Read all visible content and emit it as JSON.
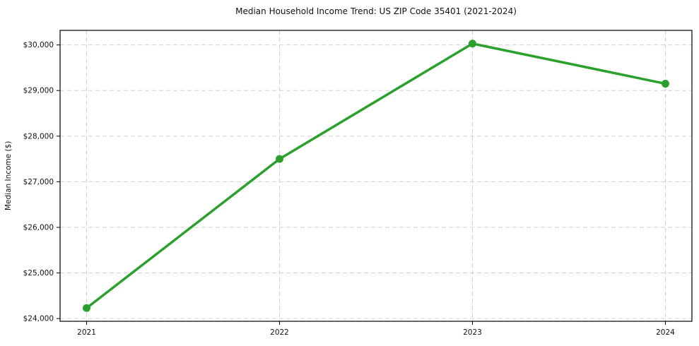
{
  "chart_data": {
    "type": "line",
    "title": "Median Household Income Trend: US ZIP Code 35401 (2021-2024)",
    "xlabel": "",
    "ylabel": "Median Income ($)",
    "categories": [
      "2021",
      "2022",
      "2023",
      "2024"
    ],
    "values": [
      24230,
      27500,
      30030,
      29150
    ],
    "ylim": [
      23940,
      30320
    ],
    "yticks": [
      24000,
      25000,
      26000,
      27000,
      28000,
      29000,
      30000
    ],
    "ytick_labels": [
      "$24,000",
      "$25,000",
      "$26,000",
      "$27,000",
      "$28,000",
      "$29,000",
      "$30,000"
    ],
    "grid": "dashed",
    "legend": "none",
    "line_color": "#2ca02c",
    "marker_color": "#2ca02c",
    "grid_color": "#cfcfcf",
    "axis_color": "#000000",
    "tick_label_color": "#111111",
    "background_color": "#ffffff"
  }
}
